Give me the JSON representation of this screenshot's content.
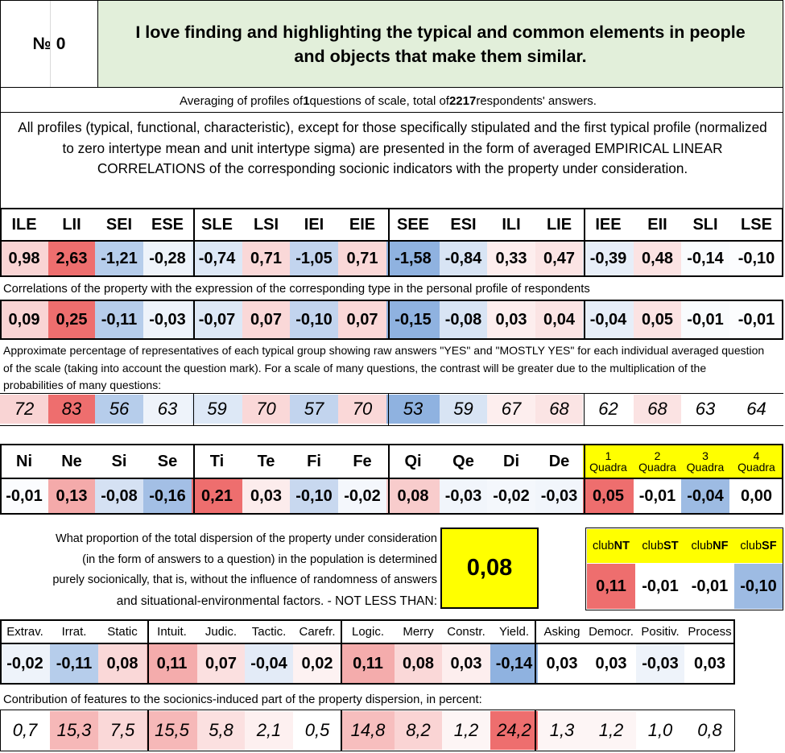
{
  "header": {
    "number_label": "№ 0",
    "question": "I love finding and highlighting the typical and common elements in people and objects that make them similar."
  },
  "averaging": {
    "prefix": "Averaging of profiles of ",
    "questions": "1",
    "middle": " questions of scale, total of ",
    "respondents": "2217",
    "suffix": " respondents' answers."
  },
  "intro_text": "All profiles (typical, functional, characteristic), except for those specifically stipulated and the first typical profile (normalized to zero intertype mean and unit intertype sigma) are presented in the form of averaged EMPIRICAL LINEAR CORRELATIONS of the corresponding socionic indicators with the property under consideration.",
  "types": {
    "headers": [
      "ILE",
      "LII",
      "SEI",
      "ESE",
      "SLE",
      "LSI",
      "IEI",
      "EIE",
      "SEE",
      "ESI",
      "ILI",
      "LIE",
      "IEE",
      "EII",
      "SLI",
      "LSE"
    ],
    "values": [
      "0,98",
      "2,63",
      "-1,21",
      "-0,28",
      "-0,74",
      "0,71",
      "-1,05",
      "0,71",
      "-1,58",
      "-0,84",
      "0,33",
      "0,47",
      "-0,39",
      "0,48",
      "-0,14",
      "-0,10"
    ],
    "value_colors": [
      "#f9d4d4",
      "#ee6e6e",
      "#b6cdeb",
      "#eef3fa",
      "#dde8f6",
      "#fad8d8",
      "#c2d4ee",
      "#fad8d8",
      "#8fb2e0",
      "#d8e4f4",
      "#fdeeee",
      "#fbe4e4",
      "#e7eef8",
      "#fbe3e3",
      "#f9fbfd",
      "#fcfdfe"
    ],
    "correlations_label": "Correlations of the property with the expression of the corresponding type in the personal profile of respondents",
    "correlations": [
      "0,09",
      "0,25",
      "-0,11",
      "-0,03",
      "-0,07",
      "0,07",
      "-0,10",
      "0,07",
      "-0,15",
      "-0,08",
      "0,03",
      "0,04",
      "-0,04",
      "0,05",
      "-0,01",
      "-0,01"
    ],
    "correlation_colors": [
      "#f9d4d4",
      "#ee6e6e",
      "#b6cdeb",
      "#eef3fa",
      "#dde8f6",
      "#fad8d8",
      "#c2d4ee",
      "#fad8d8",
      "#8fb2e0",
      "#d8e4f4",
      "#fdeeee",
      "#fbe4e4",
      "#e7eef8",
      "#fbe3e3",
      "#f9fbfd",
      "#fcfdfe"
    ],
    "percent_label": "Approximate percentage of representatives of each typical group showing raw answers \"YES\" and \"MOSTLY YES\" for each individual averaged question of the scale (taking into account the question mark). For a scale of many questions, the contrast will be greater due to the multiplication of the probabilities of many questions:",
    "percents": [
      "72",
      "83",
      "56",
      "63",
      "59",
      "70",
      "57",
      "70",
      "53",
      "59",
      "67",
      "68",
      "62",
      "68",
      "63",
      "64"
    ],
    "percent_colors": [
      "#f9d4d4",
      "#ee6e6e",
      "#b6cdeb",
      "#eef3fa",
      "#dde8f6",
      "#fad8d8",
      "#c2d4ee",
      "#fad8d8",
      "#8fb2e0",
      "#d8e4f4",
      "#fdeeee",
      "#fbe4e4",
      "#ffffff",
      "#fbe3e3",
      "#ffffff",
      "#ffffff"
    ]
  },
  "functions": {
    "headers": [
      "Ni",
      "Ne",
      "Si",
      "Se",
      "Ti",
      "Te",
      "Fi",
      "Fe",
      "Qi",
      "Qe",
      "Di",
      "De"
    ],
    "values": [
      "-0,01",
      "0,13",
      "-0,08",
      "-0,16",
      "0,21",
      "0,03",
      "-0,10",
      "-0,02",
      "0,08",
      "-0,03",
      "-0,02",
      "-0,03"
    ],
    "value_colors": [
      "#fbfcfe",
      "#f4aaaa",
      "#d5e1f3",
      "#a3bfe5",
      "#ee6e6e",
      "#fcecec",
      "#c8d8ef",
      "#f4f7fc",
      "#f8cccc",
      "#f1f5fb",
      "#f4f7fc",
      "#f1f5fb"
    ]
  },
  "quadras": {
    "numbers": [
      "1",
      "2",
      "3",
      "4"
    ],
    "label": "Quadra",
    "values": [
      "0,05",
      "-0,01",
      "-0,04",
      "0,00"
    ],
    "value_colors": [
      "#ee6e6e",
      "#ffffff",
      "#9dbbe3",
      "#ffffff"
    ],
    "header_bg": "#ffff00"
  },
  "dispersion": {
    "lines": [
      "What proportion of the total dispersion of the property under consideration",
      "(in the form of answers to a question) in the population is determined",
      "purely socionically, that is, without the influence of randomness of answers"
    ],
    "last_line": "and situational-environmental factors. - NOT LESS THAN:",
    "value": "0,08",
    "value_bg": "#ffff00"
  },
  "clubs": {
    "prefix": "club",
    "names": [
      "NT",
      "ST",
      "NF",
      "SF"
    ],
    "values": [
      "0,11",
      "-0,01",
      "-0,01",
      "-0,10"
    ],
    "value_colors": [
      "#ee6e6e",
      "#ffffff",
      "#ffffff",
      "#9dbbe3"
    ]
  },
  "dichotomies": {
    "headers": [
      "Extrav.",
      "Irrat.",
      "Static",
      "Intuit.",
      "Judic.",
      "Tactic.",
      "Carefr.",
      "Logic.",
      "Merry",
      "Constr.",
      "Yield.",
      "Asking",
      "Democr.",
      "Positiv.",
      "Process"
    ],
    "values": [
      "-0,02",
      "-0,11",
      "0,08",
      "0,11",
      "0,07",
      "-0,04",
      "0,02",
      "0,11",
      "0,08",
      "0,03",
      "-0,14",
      "0,03",
      "0,03",
      "-0,03",
      "0,03"
    ],
    "value_colors": [
      "#eef3fa",
      "#b6cdeb",
      "#fad8d8",
      "#f4acac",
      "#fbe0e0",
      "#e3ebf7",
      "#fdf2f2",
      "#f4acac",
      "#fad8d8",
      "#fdeeee",
      "#8fb2e0",
      "#ffffff",
      "#ffffff",
      "#eef3fa",
      "#ffffff"
    ],
    "contribution_label": "Contribution of features to the sociоnics-induced part of the property dispersion, in percent:",
    "contributions": [
      "0,7",
      "15,3",
      "7,5",
      "15,5",
      "5,8",
      "2,1",
      "0,5",
      "14,8",
      "8,2",
      "1,2",
      "24,2",
      "1,3",
      "1,2",
      "1,0",
      "0,8"
    ],
    "contribution_colors": [
      "#ffffff",
      "#f6b8b8",
      "#fad8d8",
      "#f6b8b8",
      "#fbe0e0",
      "#fdf0f0",
      "#ffffff",
      "#f7bebe",
      "#fad4d4",
      "#fdf5f5",
      "#ee6e6e",
      "#fdf5f5",
      "#fdf5f5",
      "#ffffff",
      "#ffffff"
    ]
  },
  "colors": {
    "header_bg": "#e2efda",
    "positive_strong": "#ee6e6e",
    "negative_strong": "#8fb2e0",
    "highlight_yellow": "#ffff00"
  }
}
